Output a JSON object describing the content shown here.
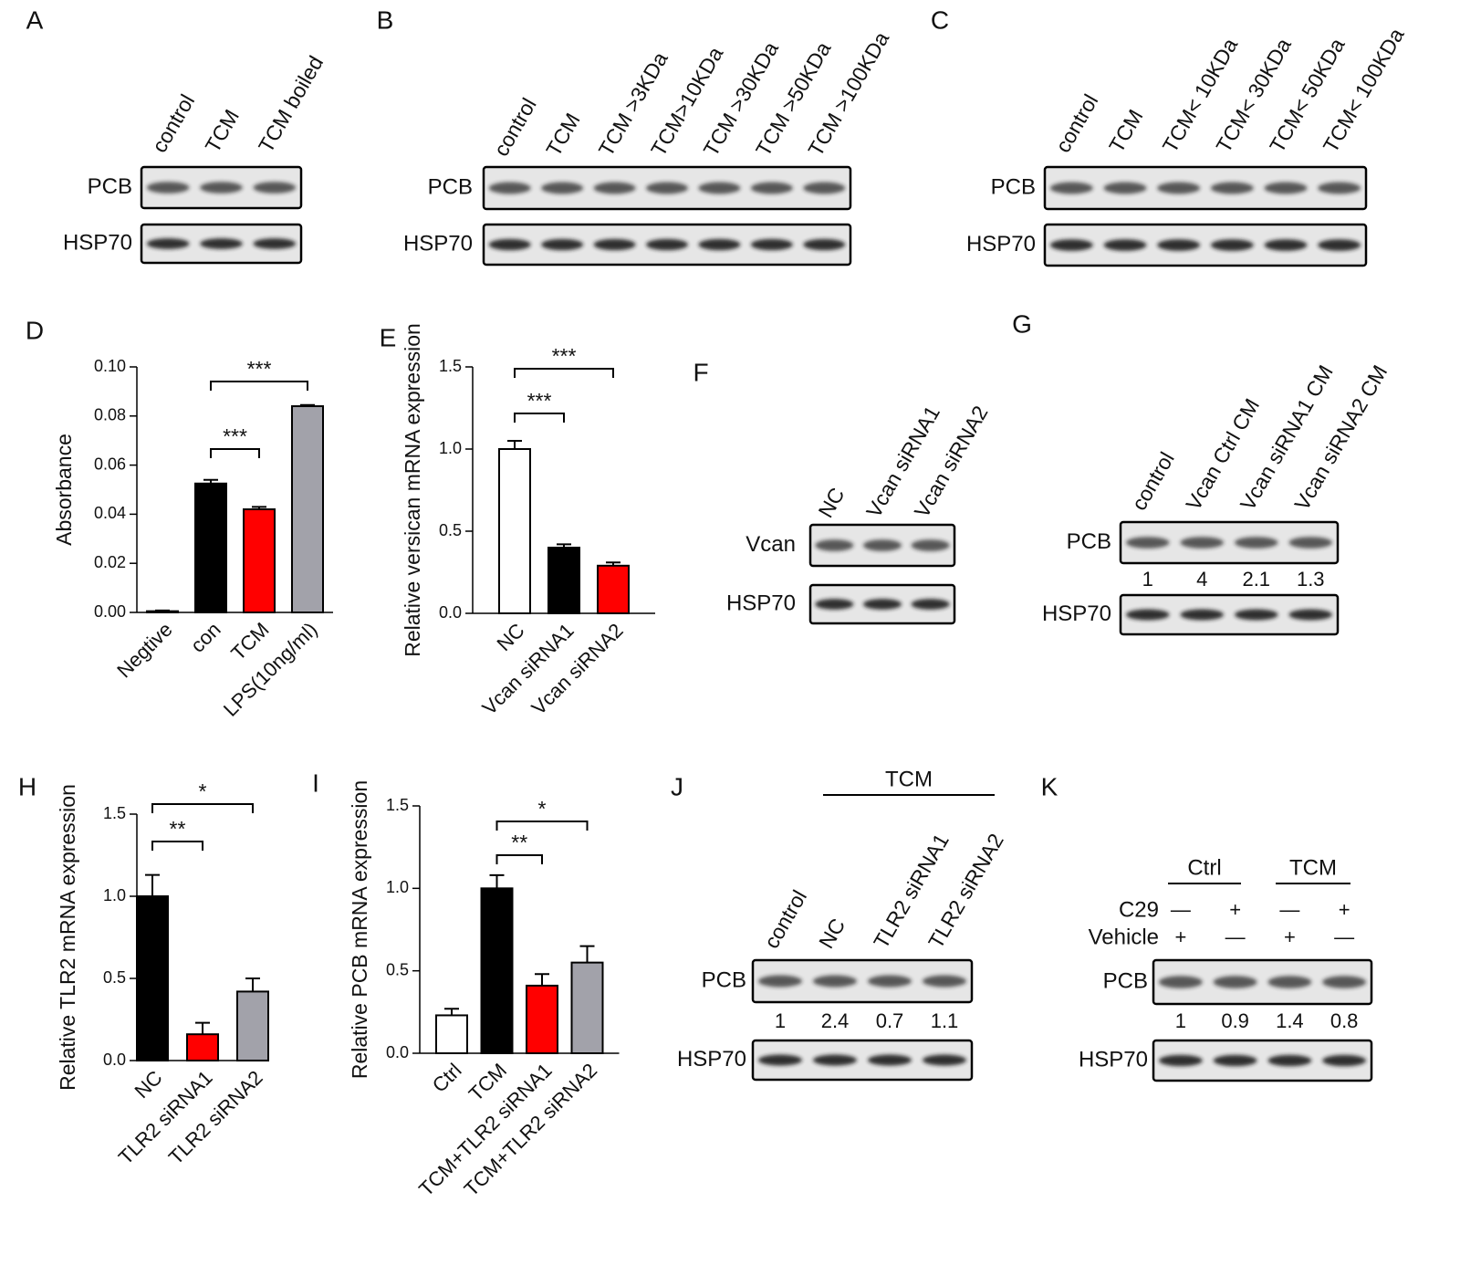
{
  "chart_data": [
    {
      "type": "bar",
      "panel": "D",
      "ylabel": "Absorbance",
      "categories": [
        "Negtive",
        "con",
        "TCM",
        "LPS(10ng/ml)"
      ],
      "values": [
        0.0005,
        0.0525,
        0.042,
        0.084
      ],
      "errors": [
        0.0003,
        0.0015,
        0.001,
        0.0005
      ],
      "colors": [
        "#ffffff",
        "#000000",
        "#ff0000",
        "#a2a2aa"
      ],
      "ylim": [
        0,
        0.1
      ],
      "yticks": [
        {
          "value": 0,
          "label": "0.00"
        },
        0.02,
        0.04,
        0.06,
        0.08,
        {
          "value": 0.1,
          "label": "0.10"
        }
      ],
      "brackets": [
        {
          "text": "***",
          "from": 1,
          "to": 2
        },
        {
          "text": "***",
          "from": 1,
          "to": 3
        }
      ]
    },
    {
      "type": "bar",
      "panel": "E",
      "ylabel": "Relative versican mRNA expression",
      "categories": [
        "NC",
        "Vcan siRNA1",
        "Vcan siRNA2"
      ],
      "values": [
        1.0,
        0.4,
        0.29
      ],
      "errors": [
        0.05,
        0.02,
        0.02
      ],
      "colors": [
        "#ffffff",
        "#000000",
        "#ff0000"
      ],
      "ylim": [
        0,
        1.5
      ],
      "yticks": [
        {
          "value": 0,
          "label": "0.0"
        },
        0.5,
        {
          "value": 1,
          "label": "1.0"
        },
        1.5
      ],
      "brackets": [
        {
          "text": "***",
          "from": 0,
          "to": 1
        },
        {
          "text": "***",
          "from": 0,
          "to": 2
        }
      ]
    },
    {
      "type": "bar",
      "panel": "H",
      "ylabel": "Relative TLR2 mRNA expression",
      "categories": [
        "NC",
        "TLR2 siRNA1",
        "TLR2 siRNA2"
      ],
      "values": [
        1.0,
        0.16,
        0.42
      ],
      "errors": [
        0.13,
        0.07,
        0.08
      ],
      "colors": [
        "#000000",
        "#ff0000",
        "#a2a2aa"
      ],
      "ylim": [
        0,
        1.5
      ],
      "yticks": [
        {
          "value": 0,
          "label": "0.0"
        },
        0.5,
        {
          "value": 1,
          "label": "1.0"
        },
        1.5
      ],
      "brackets": [
        {
          "text": "**",
          "from": 0,
          "to": 1
        },
        {
          "text": "*",
          "from": 0,
          "to": 2
        }
      ]
    },
    {
      "type": "bar",
      "panel": "I",
      "ylabel": "Relative PCB mRNA expression",
      "categories": [
        "Ctrl",
        "TCM",
        "TCM+TLR2 siRNA1",
        "TCM+TLR2 siRNA2"
      ],
      "values": [
        0.23,
        1.0,
        0.41,
        0.55
      ],
      "errors": [
        0.04,
        0.08,
        0.07,
        0.1
      ],
      "colors": [
        "#ffffff",
        "#000000",
        "#ff0000",
        "#a2a2aa"
      ],
      "ylim": [
        0,
        1.5
      ],
      "yticks": [
        {
          "value": 0,
          "label": "0.0"
        },
        0.5,
        {
          "value": 1,
          "label": "1.0"
        },
        1.5
      ],
      "brackets": [
        {
          "text": "**",
          "from": 1,
          "to": 2
        },
        {
          "text": "*",
          "from": 1,
          "to": 3
        }
      ]
    }
  ],
  "blots": [
    {
      "panel": "A",
      "lanes": [
        "control",
        "TCM",
        "TCM boiled"
      ],
      "rows": [
        "PCB",
        "HSP70"
      ]
    },
    {
      "panel": "B",
      "lanes": [
        "control",
        "TCM",
        "TCM >3KDa",
        "TCM>10KDa",
        "TCM >30KDa",
        "TCM >50KDa",
        "TCM >100KDa"
      ],
      "rows": [
        "PCB",
        "HSP70"
      ]
    },
    {
      "panel": "C",
      "lanes": [
        "control",
        "TCM",
        "TCM< 10KDa",
        "TCM< 30KDa",
        "TCM< 50KDa",
        "TCM< 100KDa"
      ],
      "rows": [
        "PCB",
        "HSP70"
      ]
    },
    {
      "panel": "F",
      "lanes": [
        "NC",
        "Vcan siRNA1",
        "Vcan siRNA2"
      ],
      "rows": [
        "Vcan",
        "HSP70"
      ]
    },
    {
      "panel": "G",
      "lanes": [
        "control",
        "Vcan Ctrl CM",
        "Vcan siRNA1  CM",
        "Vcan siRNA2 CM"
      ],
      "rows": [
        "PCB",
        "HSP70"
      ],
      "quant": [
        1,
        4,
        2.1,
        1.3
      ]
    },
    {
      "panel": "J",
      "groups": [
        "TCM"
      ],
      "lanes": [
        "control",
        "NC",
        "TLR2 siRNA1",
        "TLR2 siRNA2"
      ],
      "rows": [
        "PCB",
        "HSP70"
      ],
      "quant": [
        1,
        2.4,
        0.7,
        1.1
      ]
    },
    {
      "panel": "K",
      "groups": [
        "Ctrl",
        "TCM"
      ],
      "treatments": [
        {
          "name": "C29",
          "signs": [
            "—",
            "+",
            "—",
            "+"
          ]
        },
        {
          "name": "Vehicle",
          "signs": [
            "+",
            "—",
            "+",
            "—"
          ]
        }
      ],
      "rows": [
        "PCB",
        "HSP70"
      ],
      "quant": [
        1,
        0.9,
        1.4,
        0.8
      ]
    }
  ]
}
